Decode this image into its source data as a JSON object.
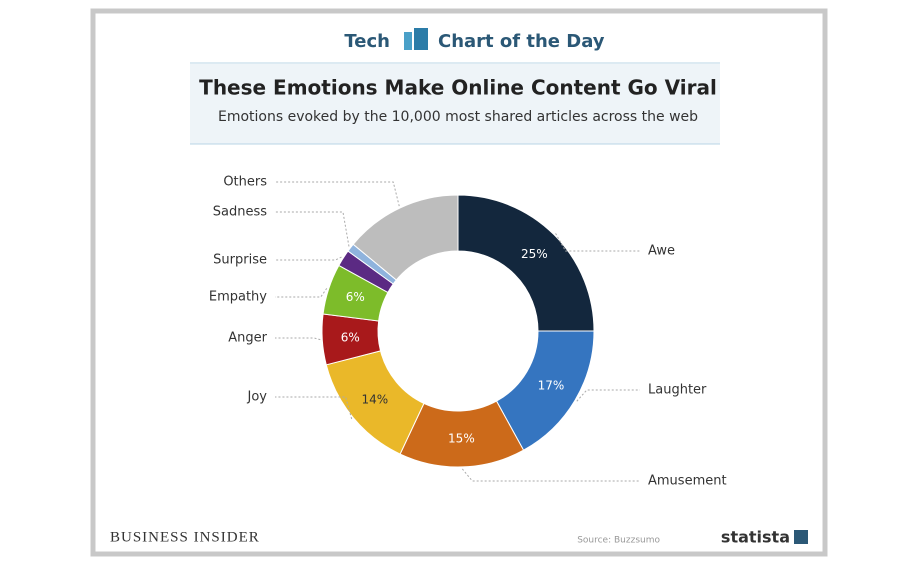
{
  "chart_data": {
    "type": "donut",
    "brand_tag": "Tech",
    "brand_series": "Chart of the Day",
    "title": "These Emotions Make Online Content Go Viral",
    "subtitle": "Emotions evoked by the 10,000 most shared articles across the web",
    "categories": [
      "Awe",
      "Laughter",
      "Amusement",
      "Joy",
      "Anger",
      "Empathy",
      "Surprise",
      "Sadness",
      "Others"
    ],
    "values": [
      25,
      17,
      15,
      14,
      6,
      6,
      2,
      1,
      14
    ],
    "value_labels": [
      "25%",
      "17%",
      "15%",
      "14%",
      "6%",
      "6%",
      null,
      null,
      null
    ],
    "colors": [
      "#13273d",
      "#3575c0",
      "#cc6a1a",
      "#eab829",
      "#a8191b",
      "#7dbc2a",
      "#5b2a83",
      "#8fb3dd",
      "#bdbdbd"
    ],
    "publisher": "BUSINESS INSIDER",
    "source": "Source: Buzzsumo",
    "logo": "statista"
  }
}
